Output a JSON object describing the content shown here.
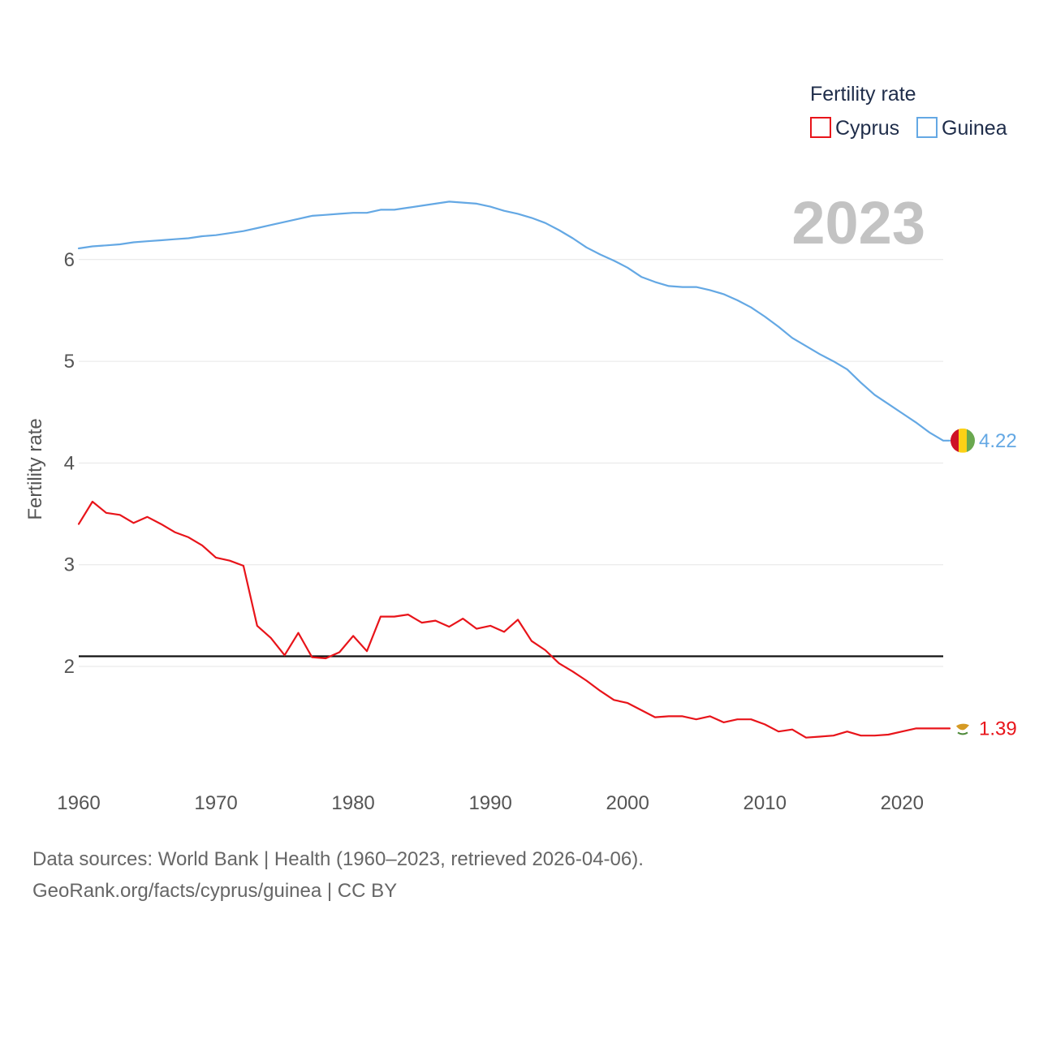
{
  "chart_data": {
    "type": "line",
    "title": "",
    "ylabel": "Fertility rate",
    "xlabel": "",
    "xlim": [
      1960,
      2023
    ],
    "ylim": [
      1.0,
      6.9
    ],
    "yticks": [
      2,
      3,
      4,
      5,
      6
    ],
    "xticks": [
      1960,
      1970,
      1980,
      1990,
      2000,
      2010,
      2020
    ],
    "grid": true,
    "legend": {
      "title": "Fertility rate",
      "position": "top-right",
      "entries": [
        "Cyprus",
        "Guinea"
      ]
    },
    "year_label": "2023",
    "reference_line": {
      "value": 2.1
    },
    "x": [
      1960,
      1961,
      1962,
      1963,
      1964,
      1965,
      1966,
      1967,
      1968,
      1969,
      1970,
      1971,
      1972,
      1973,
      1974,
      1975,
      1976,
      1977,
      1978,
      1979,
      1980,
      1981,
      1982,
      1983,
      1984,
      1985,
      1986,
      1987,
      1988,
      1989,
      1990,
      1991,
      1992,
      1993,
      1994,
      1995,
      1996,
      1997,
      1998,
      1999,
      2000,
      2001,
      2002,
      2003,
      2004,
      2005,
      2006,
      2007,
      2008,
      2009,
      2010,
      2011,
      2012,
      2013,
      2014,
      2015,
      2016,
      2017,
      2018,
      2019,
      2020,
      2021,
      2022,
      2023
    ],
    "series": [
      {
        "name": "Cyprus",
        "color": "#e8141a",
        "end_label": "1.39",
        "values": [
          3.4,
          3.62,
          3.51,
          3.49,
          3.41,
          3.47,
          3.4,
          3.32,
          3.27,
          3.19,
          3.07,
          3.04,
          2.99,
          2.4,
          2.28,
          2.11,
          2.33,
          2.09,
          2.08,
          2.14,
          2.3,
          2.15,
          2.49,
          2.49,
          2.51,
          2.43,
          2.45,
          2.39,
          2.47,
          2.37,
          2.4,
          2.34,
          2.46,
          2.25,
          2.16,
          2.03,
          1.95,
          1.86,
          1.76,
          1.67,
          1.64,
          1.57,
          1.5,
          1.51,
          1.51,
          1.48,
          1.51,
          1.45,
          1.48,
          1.48,
          1.43,
          1.36,
          1.38,
          1.3,
          1.31,
          1.32,
          1.36,
          1.32,
          1.32,
          1.33,
          1.36,
          1.39,
          1.39,
          1.39
        ]
      },
      {
        "name": "Guinea",
        "color": "#64a8e4",
        "end_label": "4.22",
        "values": [
          6.11,
          6.13,
          6.14,
          6.15,
          6.17,
          6.18,
          6.19,
          6.2,
          6.21,
          6.23,
          6.24,
          6.26,
          6.28,
          6.31,
          6.34,
          6.37,
          6.4,
          6.43,
          6.44,
          6.45,
          6.46,
          6.46,
          6.49,
          6.49,
          6.51,
          6.53,
          6.55,
          6.57,
          6.56,
          6.55,
          6.52,
          6.48,
          6.45,
          6.41,
          6.36,
          6.29,
          6.21,
          6.12,
          6.05,
          5.99,
          5.92,
          5.83,
          5.78,
          5.74,
          5.73,
          5.73,
          5.7,
          5.66,
          5.6,
          5.53,
          5.44,
          5.34,
          5.23,
          5.15,
          5.07,
          5.0,
          4.92,
          4.79,
          4.67,
          4.58,
          4.49,
          4.4,
          4.3,
          4.22
        ]
      }
    ]
  },
  "footer": {
    "sources": "Data sources: World Bank | Health (1960–2023, retrieved 2026-04-06).",
    "credit": "GeoRank.org/facts/cyprus/guinea | CC BY"
  }
}
